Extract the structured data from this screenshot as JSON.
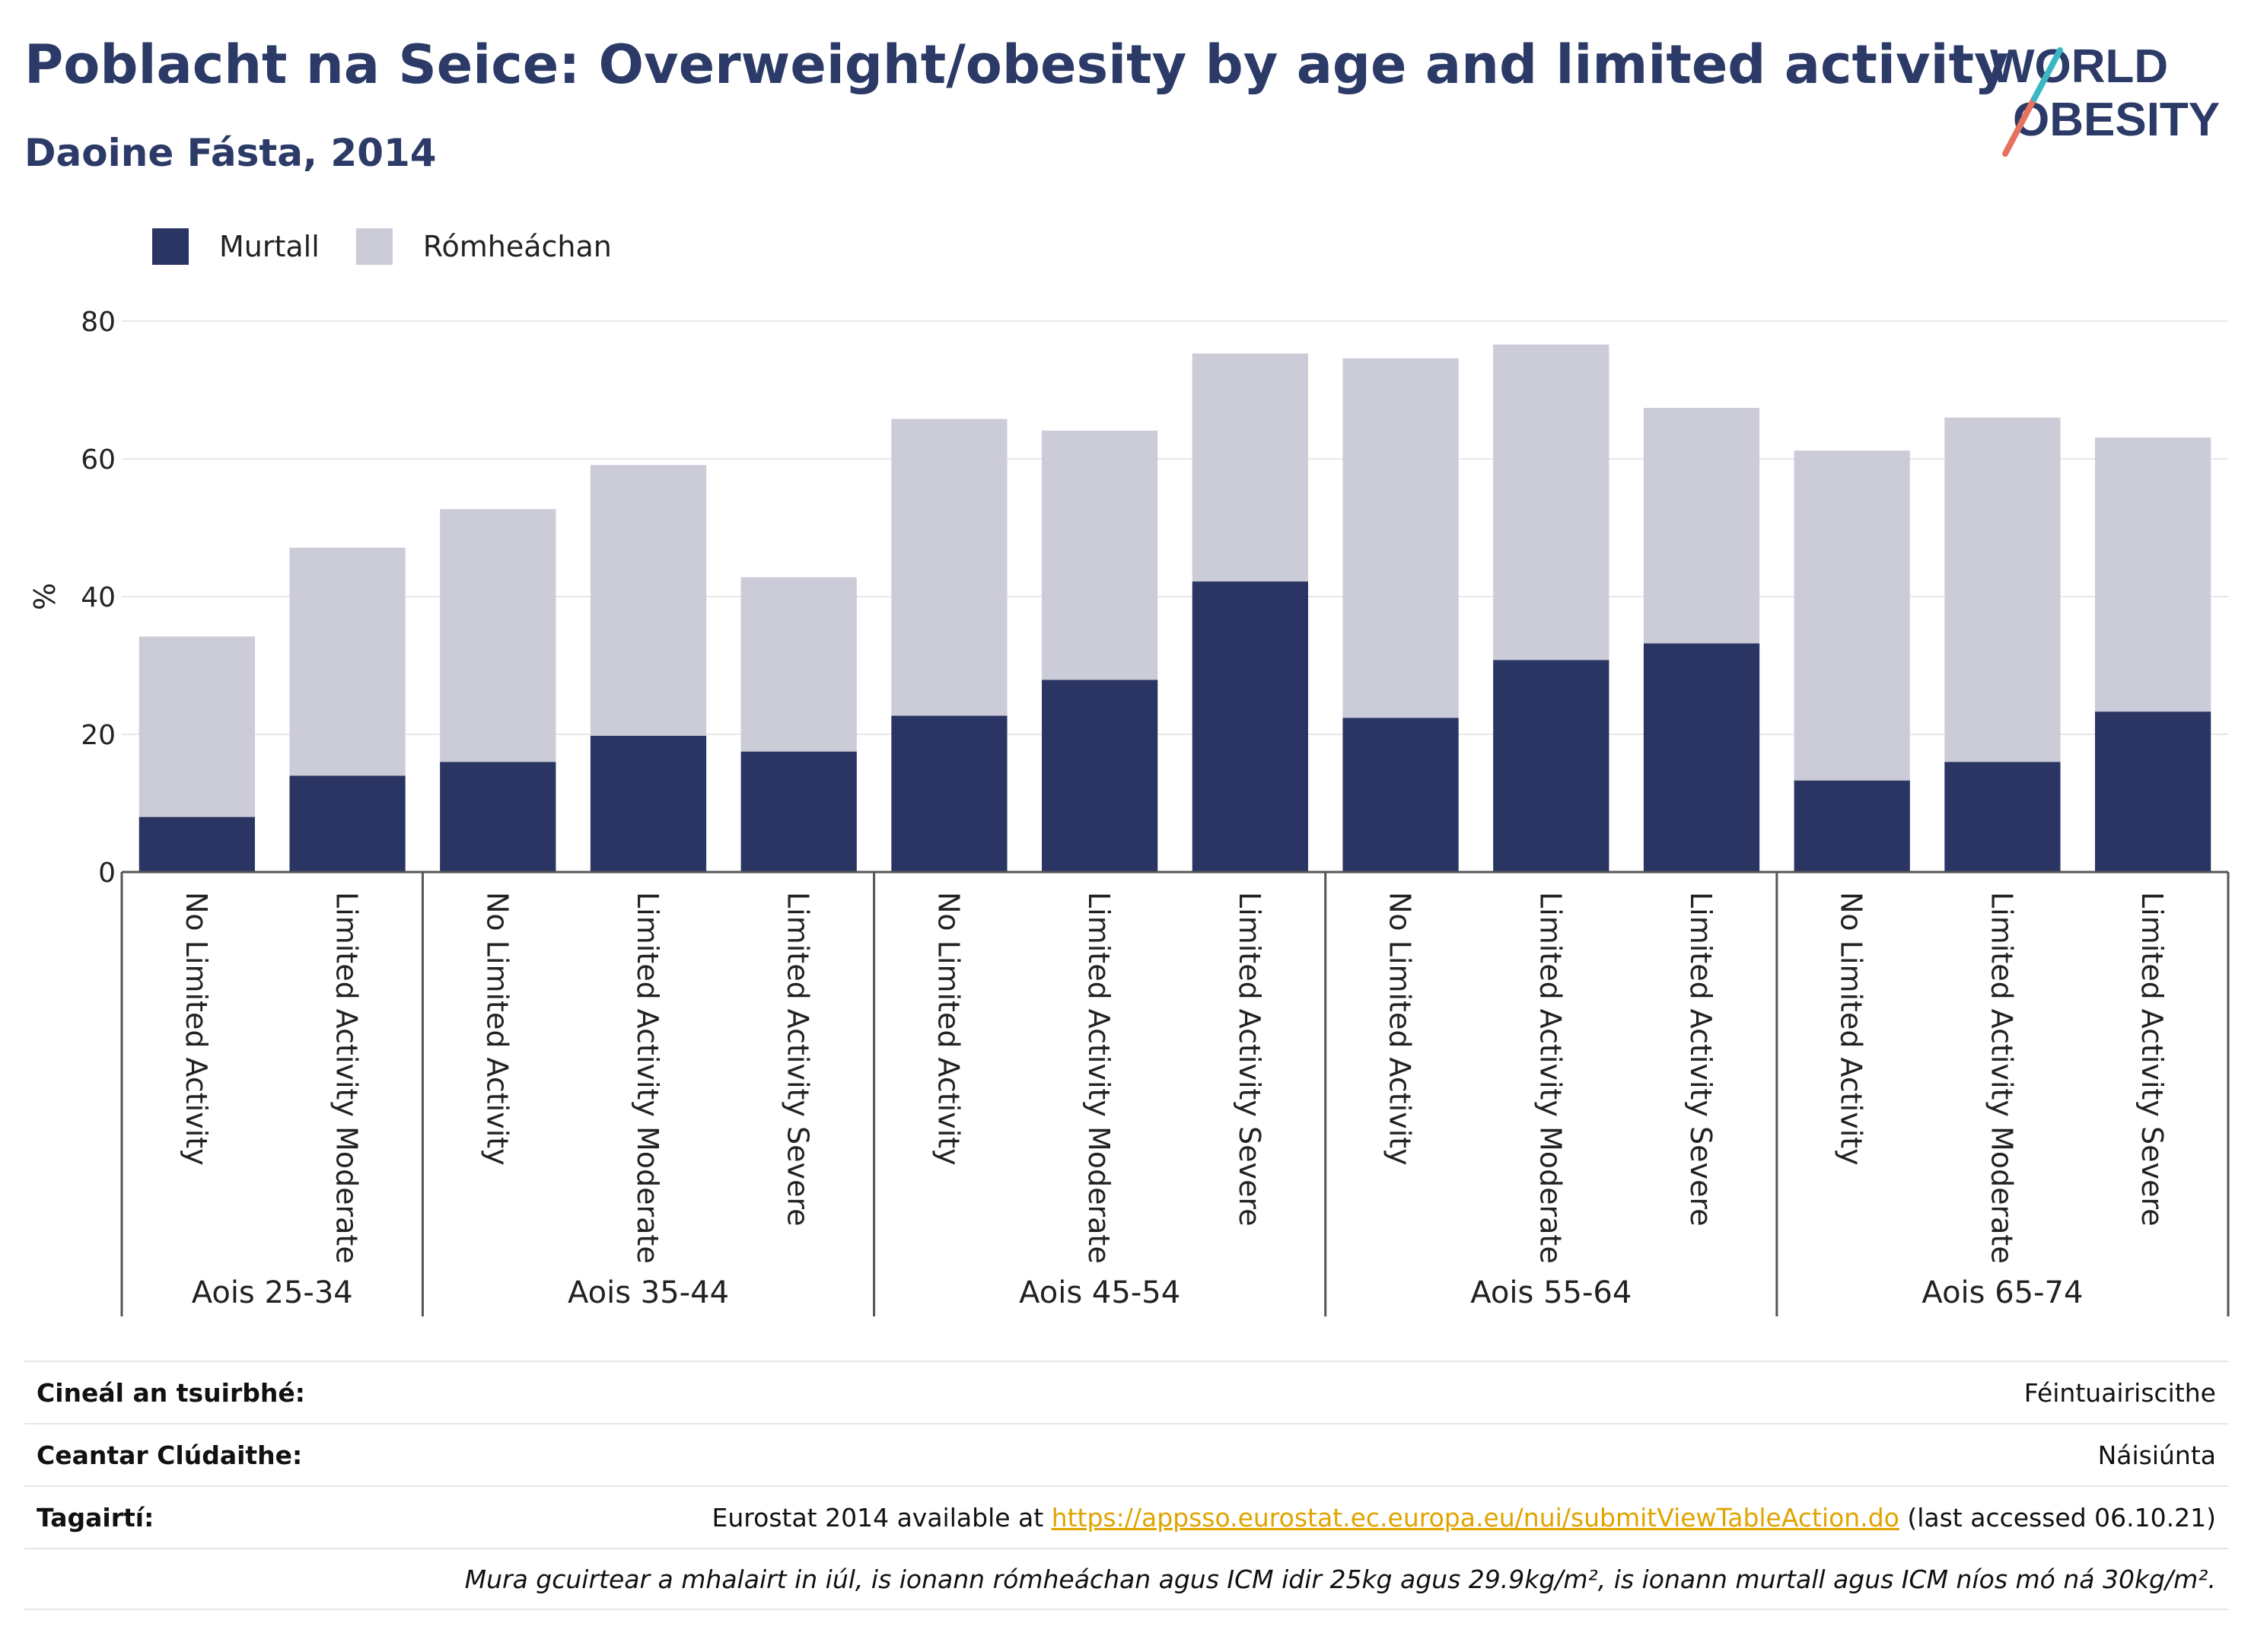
{
  "header": {
    "title": "Poblacht na Seice: Overweight/obesity by age and limited activity",
    "subtitle": "Daoine Fásta, 2014"
  },
  "logo": {
    "line1": "WORLD",
    "line2": "OBESITY"
  },
  "legend": [
    {
      "label": "Murtall",
      "color": "#2b3563"
    },
    {
      "label": "Rómheáchan",
      "color": "#cbccd8"
    }
  ],
  "chart_data": {
    "type": "bar",
    "stacked": true,
    "ylabel": "%",
    "ylim": [
      0,
      80
    ],
    "yticks": [
      0,
      20,
      40,
      60,
      80
    ],
    "grid": true,
    "categories": [
      "No Limited Activity",
      "Limited Activity Moderate",
      "No Limited Activity",
      "Limited Activity Moderate",
      "Limited Activity Severe",
      "No Limited Activity",
      "Limited Activity Moderate",
      "Limited Activity Severe",
      "No Limited Activity",
      "Limited Activity Moderate",
      "Limited Activity Severe",
      "No Limited Activity",
      "Limited Activity Moderate",
      "Limited Activity Severe"
    ],
    "groups": [
      {
        "label": "Aois 25-34",
        "count": 2
      },
      {
        "label": "Aois 35-44",
        "count": 3
      },
      {
        "label": "Aois 45-54",
        "count": 3
      },
      {
        "label": "Aois 55-64",
        "count": 3
      },
      {
        "label": "Aois 65-74",
        "count": 3
      }
    ],
    "series": [
      {
        "name": "Murtall",
        "color": "#2b3563",
        "values": [
          8.0,
          14.0,
          16.0,
          19.8,
          17.5,
          22.7,
          27.9,
          42.2,
          22.4,
          30.8,
          33.2,
          13.3,
          16.0,
          23.3
        ]
      },
      {
        "name": "Rómheáchan",
        "color": "#cbccd8",
        "values": [
          26.2,
          33.1,
          36.7,
          39.3,
          25.3,
          43.1,
          36.2,
          33.1,
          52.2,
          45.8,
          34.2,
          47.9,
          50.0,
          39.8
        ]
      }
    ]
  },
  "footer": {
    "survey_label": "Cineál an tsuirbhé:",
    "survey_value": "Féintuairiscithe",
    "area_label": "Ceantar Clúdaithe:",
    "area_value": "Náisiúnta",
    "ref_label": "Tagairtí:",
    "ref_prefix": "Eurostat 2014 available at ",
    "ref_link": "https://appsso.eurostat.ec.europa.eu/nui/submitViewTableAction.do",
    "ref_suffix": " (last accessed 06.10.21)",
    "note": "Mura gcuirtear a mhalairt in iúl, is ionann rómheáchan agus ICM idir 25kg agus 29.9kg/m², is ionann murtall agus ICM níos mó ná 30kg/m²."
  }
}
